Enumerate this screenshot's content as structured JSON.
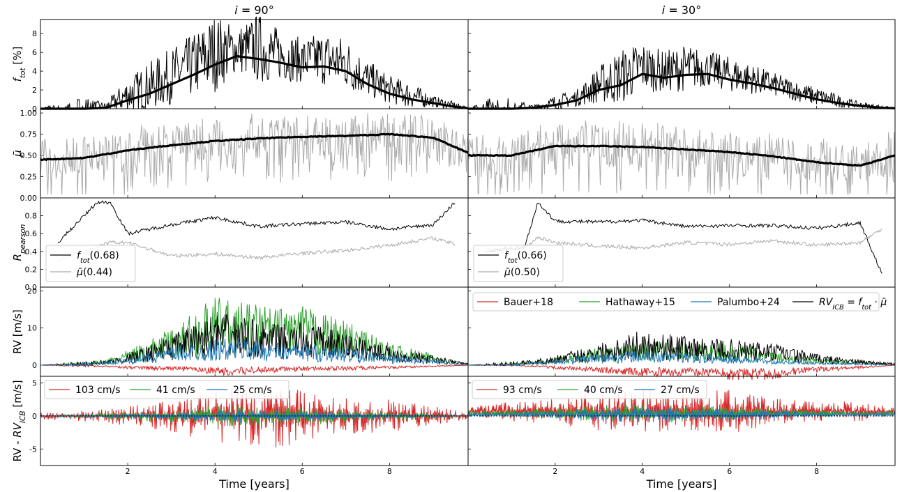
{
  "columns": [
    {
      "title": "i = 90°",
      "title_var": "i",
      "title_value": "90"
    },
    {
      "title": "i = 30°",
      "title_var": "i",
      "title_value": "30"
    }
  ],
  "row_labels": [
    "f_tot [%]",
    "μ̄",
    "R_pearson",
    "RV [m/s]",
    "RV - RV_ICB [m/s]"
  ],
  "xlabel": "Time [years]",
  "x_ticks": [
    2,
    4,
    6,
    8
  ],
  "colors": {
    "bauer": "#d62728",
    "hathaway": "#2ca02c",
    "palumbo": "#1f77b4",
    "icb": "#000000",
    "mu_raw": "#aaaaaa",
    "smooth": "#000000"
  },
  "chart_data": [
    {
      "type": "line",
      "panel": "f_tot",
      "ylabel": "f_tot [%]",
      "ylim": [
        0,
        9.5
      ],
      "yticks": [
        0,
        2,
        4,
        6,
        8
      ],
      "x": [
        0,
        0.5,
        1,
        1.5,
        2,
        2.5,
        3,
        3.5,
        4,
        4.5,
        5,
        5.5,
        6,
        6.5,
        7,
        7.5,
        8,
        8.5,
        9,
        9.5,
        9.8
      ],
      "series": [
        {
          "column": 0,
          "role": "smooth",
          "values": [
            0,
            0,
            0,
            0.1,
            0.9,
            1.6,
            2.6,
            3.6,
            4.7,
            5.6,
            5.3,
            4.9,
            4.4,
            4.5,
            4.0,
            2.6,
            1.6,
            1.0,
            0.6,
            0.2,
            0.05
          ]
        },
        {
          "column": 0,
          "role": "peaks",
          "values": [
            0,
            0.8,
            0.9,
            0.5,
            2.8,
            4.2,
            5.6,
            7.0,
            8.9,
            8.0,
            9.1,
            7.6,
            6.8,
            7.4,
            6.8,
            4.6,
            3.1,
            2.4,
            1.2,
            0.6,
            0.1
          ]
        },
        {
          "column": 1,
          "role": "smooth",
          "values": [
            0,
            0,
            0,
            0.1,
            0.4,
            0.9,
            2.0,
            2.5,
            3.7,
            3.3,
            3.6,
            3.7,
            3.1,
            2.7,
            2.2,
            1.6,
            1.0,
            0.6,
            0.3,
            0.1,
            0.05
          ]
        },
        {
          "column": 1,
          "role": "peaks",
          "values": [
            0,
            0.9,
            0.9,
            0.3,
            1.2,
            1.8,
            4.0,
            5.5,
            6.4,
            5.5,
            6.1,
            5.6,
            5.0,
            4.3,
            3.5,
            2.7,
            2.0,
            1.3,
            0.6,
            0.3,
            0.1
          ]
        }
      ]
    },
    {
      "type": "line",
      "panel": "mu",
      "ylabel": "μ̄",
      "ylim": [
        0,
        1.05
      ],
      "yticks": [
        0.0,
        0.25,
        0.5,
        0.75,
        1.0
      ],
      "x": [
        0,
        1,
        2,
        3,
        4,
        5,
        6,
        7,
        8,
        9,
        9.8
      ],
      "series": [
        {
          "column": 0,
          "role": "smooth",
          "values": [
            0.45,
            0.47,
            0.56,
            0.62,
            0.67,
            0.7,
            0.72,
            0.73,
            0.75,
            0.71,
            0.53
          ]
        },
        {
          "column": 1,
          "role": "smooth",
          "values": [
            0.5,
            0.5,
            0.61,
            0.61,
            0.6,
            0.57,
            0.54,
            0.49,
            0.42,
            0.38,
            0.5
          ]
        }
      ]
    },
    {
      "type": "line",
      "panel": "pearson",
      "ylabel": "R_pearson",
      "ylim": [
        0,
        1.0
      ],
      "yticks": [
        0.0,
        0.2,
        0.4,
        0.6,
        0.8
      ],
      "x": [
        0.4,
        1.3,
        1.6,
        2,
        3,
        4,
        5,
        6,
        7,
        8,
        9,
        9.5
      ],
      "series": [
        {
          "column": 0,
          "name": "f_tot",
          "legend_value": "(0.68)",
          "values": [
            0.5,
            0.95,
            0.95,
            0.6,
            0.7,
            0.78,
            0.68,
            0.71,
            0.73,
            0.65,
            0.7,
            0.95
          ]
        },
        {
          "column": 0,
          "name": "μ̄",
          "legend_value": "(0.44)",
          "values": [
            0.3,
            0.45,
            0.5,
            0.5,
            0.35,
            0.37,
            0.33,
            0.38,
            0.41,
            0.47,
            0.55,
            0.48
          ]
        },
        {
          "column": 1,
          "name": "f_tot",
          "legend_value": "(0.66)",
          "values": [
            0.4,
            0.45,
            0.95,
            0.74,
            0.73,
            0.75,
            0.68,
            0.69,
            0.69,
            0.66,
            0.72,
            0.15
          ]
        },
        {
          "column": 1,
          "name": "μ̄",
          "legend_value": "(0.50)",
          "values": [
            0.42,
            0.44,
            0.56,
            0.5,
            0.46,
            0.44,
            0.5,
            0.48,
            0.52,
            0.47,
            0.5,
            0.65
          ]
        }
      ]
    },
    {
      "type": "line",
      "panel": "rv",
      "ylabel": "RV [m/s]",
      "ylim": [
        -3,
        21
      ],
      "yticks": [
        0,
        10,
        20
      ],
      "x": [
        0,
        1,
        1.5,
        2,
        3,
        4,
        4.5,
        5,
        5.5,
        6,
        7,
        8,
        9,
        9.8
      ],
      "legend": [
        "Bauer+18",
        "Hathaway+15",
        "Palumbo+24",
        "RV_ICB = f_tot · μ̄"
      ],
      "series": [
        {
          "column": 0,
          "name": "RV_ICB",
          "values": [
            0,
            1.0,
            1.2,
            3.0,
            8.0,
            14.0,
            13.5,
            12.0,
            11.0,
            11.5,
            9.0,
            5.0,
            2.5,
            0.5
          ]
        },
        {
          "column": 0,
          "name": "Hathaway+15",
          "values": [
            0,
            1.0,
            1.5,
            4.0,
            10.0,
            18.5,
            17.0,
            16.5,
            15.5,
            16.0,
            12.0,
            6.0,
            3.0,
            0.5
          ]
        },
        {
          "column": 0,
          "name": "Palumbo+24",
          "values": [
            0,
            0.6,
            1.0,
            2.0,
            5.0,
            7.0,
            7.5,
            7.0,
            6.0,
            6.0,
            5.0,
            3.0,
            1.5,
            0.3
          ]
        },
        {
          "column": 0,
          "name": "Bauer+18",
          "values": [
            0,
            -0.5,
            -0.5,
            -1.0,
            -1.5,
            -2.5,
            -3.0,
            -2.0,
            -2.0,
            -1.5,
            -1.5,
            -1.0,
            -0.5,
            0
          ]
        },
        {
          "column": 1,
          "name": "RV_ICB",
          "values": [
            0,
            1.0,
            1.5,
            2.5,
            6.0,
            9.5,
            8.5,
            8.0,
            7.0,
            7.0,
            6.0,
            3.0,
            1.5,
            0.5
          ]
        },
        {
          "column": 1,
          "name": "Hathaway+15",
          "values": [
            0,
            0.8,
            1.0,
            2.0,
            5.0,
            7.0,
            6.5,
            6.5,
            6.0,
            6.0,
            3.5,
            2.0,
            1.0,
            0.3
          ]
        },
        {
          "column": 1,
          "name": "Palumbo+24",
          "values": [
            0,
            0.5,
            0.8,
            1.5,
            3.0,
            4.0,
            4.0,
            3.5,
            3.0,
            3.0,
            1.5,
            1.0,
            0.5,
            0.2
          ]
        },
        {
          "column": 1,
          "name": "Bauer+18",
          "values": [
            0,
            -0.3,
            -0.5,
            -1.0,
            -2.0,
            -3.0,
            -3.0,
            -3.5,
            -3.0,
            -4.0,
            -4.0,
            -2.0,
            -1.0,
            0
          ]
        }
      ]
    },
    {
      "type": "line",
      "panel": "residual",
      "ylabel": "RV - RV_ICB [m/s]",
      "ylim": [
        -7.5,
        6
      ],
      "yticks": [
        -5,
        0,
        5
      ],
      "x": [
        0,
        1,
        2,
        3,
        4,
        4.5,
        5,
        5.5,
        6,
        7,
        8,
        9,
        9.8
      ],
      "series": [
        {
          "column": 0,
          "name": "Bauer+18",
          "legend": "103 cm/s",
          "values": [
            0.5,
            0.8,
            1.5,
            2.5,
            4.0,
            5.0,
            4.5,
            5.0,
            4.0,
            3.0,
            2.5,
            1.5,
            0.5
          ]
        },
        {
          "column": 0,
          "name": "Hathaway+15",
          "legend": "41 cm/s",
          "values": [
            0.0,
            0.3,
            0.6,
            1.0,
            1.5,
            1.8,
            1.5,
            1.5,
            1.4,
            1.0,
            0.6,
            0.4,
            0.0
          ]
        },
        {
          "column": 0,
          "name": "Palumbo+24",
          "legend": "25 cm/s",
          "values": [
            0.0,
            0.2,
            0.4,
            0.6,
            0.9,
            1.0,
            0.9,
            0.9,
            0.8,
            0.6,
            0.4,
            0.2,
            0.0
          ]
        },
        {
          "column": 1,
          "name": "Bauer+18",
          "legend": "93 cm/s",
          "values": [
            0.6,
            1.5,
            2.0,
            3.0,
            3.5,
            3.0,
            3.0,
            3.0,
            3.5,
            2.0,
            1.5,
            1.5,
            0.6
          ]
        },
        {
          "column": 1,
          "name": "Hathaway+15",
          "legend": "40 cm/s",
          "values": [
            0.4,
            0.6,
            0.8,
            1.2,
            1.5,
            1.5,
            1.2,
            1.2,
            1.0,
            0.8,
            0.5,
            0.4,
            0.4
          ]
        },
        {
          "column": 1,
          "name": "Palumbo+24",
          "legend": "27 cm/s",
          "values": [
            0.3,
            0.4,
            0.6,
            0.9,
            1.2,
            1.2,
            1.0,
            1.0,
            0.9,
            0.7,
            0.4,
            0.3,
            0.3
          ]
        }
      ]
    }
  ]
}
